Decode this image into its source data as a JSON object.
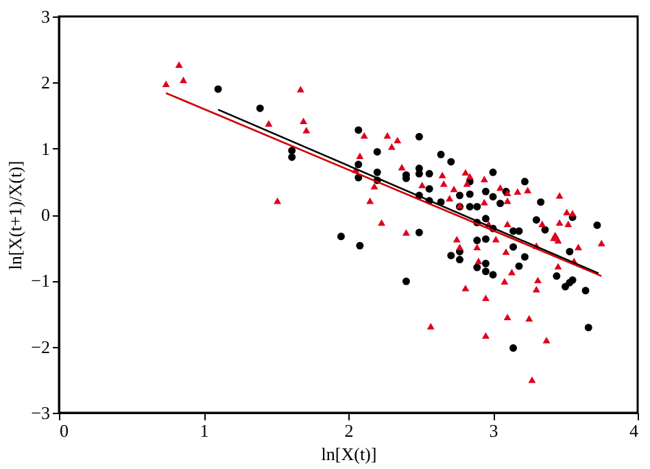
{
  "chart_data": {
    "type": "scatter",
    "xlabel": "ln[X(t)]",
    "ylabel": "ln[X(t+1)/X(t)]",
    "xlim": [
      0,
      4
    ],
    "ylim": [
      -3,
      3
    ],
    "xticks": [
      0,
      1,
      2,
      3,
      4
    ],
    "yticks": [
      -3,
      -2,
      -1,
      0,
      1,
      2,
      3
    ],
    "grid": false,
    "series": [
      {
        "type": "scatter",
        "marker": "circle",
        "color": "#000000",
        "x": [
          1.1,
          1.39,
          1.61,
          1.61,
          2.07,
          2.07,
          2.07,
          2.2,
          2.2,
          2.2,
          2.4,
          2.4,
          2.49,
          2.49,
          2.49,
          2.49,
          2.56,
          2.56,
          2.56,
          2.64,
          2.64,
          2.71,
          2.77,
          2.77,
          2.84,
          2.84,
          2.84,
          2.89,
          2.89,
          2.95,
          2.95,
          3.0,
          3.0,
          3.05,
          3.09,
          3.22,
          3.33,
          3.3,
          3.72,
          1.95,
          2.08,
          2.4,
          2.49,
          2.71,
          2.77,
          2.77,
          2.89,
          2.89,
          2.95,
          2.95,
          2.95,
          3.0,
          3.0,
          3.14,
          3.14,
          3.18,
          3.18,
          3.22,
          3.36,
          3.44,
          3.5,
          3.53,
          3.55,
          3.53,
          3.55,
          3.64,
          3.14,
          3.66
        ],
        "values": [
          1.9,
          1.61,
          0.97,
          0.87,
          1.28,
          0.76,
          0.56,
          0.95,
          0.64,
          0.52,
          0.6,
          0.55,
          1.18,
          0.7,
          0.62,
          0.29,
          0.62,
          0.39,
          0.21,
          0.91,
          0.19,
          0.8,
          0.29,
          0.12,
          0.5,
          0.31,
          0.12,
          0.12,
          -0.12,
          -0.06,
          0.35,
          0.64,
          0.27,
          0.17,
          0.35,
          0.5,
          0.19,
          -0.08,
          -0.16,
          -0.33,
          -0.47,
          -1.01,
          -0.27,
          -0.62,
          -0.56,
          -0.68,
          -0.39,
          -0.8,
          -0.37,
          -0.74,
          -0.86,
          -0.21,
          -0.91,
          -0.25,
          -0.49,
          -0.25,
          -0.78,
          -0.64,
          -0.23,
          -0.93,
          -1.09,
          -1.03,
          -0.99,
          -0.56,
          -0.04,
          -1.15,
          -2.02,
          -1.71
        ]
      },
      {
        "type": "scatter",
        "marker": "triangle",
        "color": "#e0001b",
        "x": [
          0.74,
          0.83,
          0.86,
          1.67,
          1.45,
          1.69,
          1.71,
          1.51,
          2.08,
          2.11,
          2.05,
          2.18,
          2.15,
          2.23,
          2.27,
          2.3,
          2.34,
          2.37,
          2.51,
          2.65,
          2.66,
          2.7,
          2.73,
          2.77,
          2.81,
          2.84,
          2.82,
          2.94,
          2.94,
          3.05,
          3.1,
          3.1,
          3.17,
          3.24,
          3.46,
          3.51,
          3.55,
          3.46,
          3.52,
          3.34,
          3.1,
          2.97,
          2.4,
          2.57,
          2.75,
          2.77,
          2.81,
          2.89,
          2.9,
          2.95,
          2.95,
          3.02,
          3.09,
          3.08,
          3.1,
          3.13,
          3.25,
          3.27,
          3.3,
          3.31,
          3.3,
          3.37,
          3.42,
          3.44,
          3.45,
          3.45,
          3.56,
          3.59,
          3.75,
          3.43
        ],
        "values": [
          1.98,
          2.27,
          2.04,
          1.9,
          1.38,
          1.42,
          1.28,
          0.21,
          0.89,
          1.2,
          0.68,
          0.43,
          0.21,
          -0.12,
          1.2,
          1.03,
          1.13,
          0.72,
          0.45,
          0.6,
          0.47,
          0.25,
          0.39,
          0.14,
          0.64,
          0.58,
          0.47,
          0.54,
          0.19,
          0.41,
          0.33,
          0.21,
          0.35,
          0.37,
          0.29,
          0.04,
          0.02,
          -0.12,
          -0.14,
          -0.14,
          -0.14,
          -0.14,
          -0.27,
          -1.69,
          -0.37,
          -0.49,
          -1.11,
          -0.49,
          -0.7,
          -1.26,
          -1.83,
          -0.37,
          -0.56,
          -1.01,
          -1.55,
          -0.87,
          -1.57,
          -2.5,
          -1.13,
          -0.99,
          -0.47,
          -1.9,
          -0.35,
          -0.35,
          -0.39,
          -0.78,
          -0.7,
          -0.49,
          -0.43,
          -0.31
        ]
      },
      {
        "type": "line",
        "marker": "none",
        "color": "#000000",
        "x": [
          1.1,
          3.73
        ],
        "values": [
          1.59,
          -0.89
        ]
      },
      {
        "type": "line",
        "marker": "none",
        "color": "#d00000",
        "x": [
          0.74,
          3.75
        ],
        "values": [
          1.84,
          -0.93
        ]
      }
    ]
  }
}
